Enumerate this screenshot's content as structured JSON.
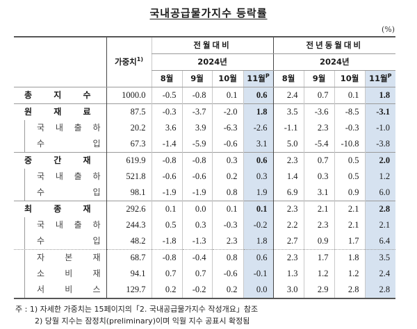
{
  "title": "국내공급물가지수 등락률",
  "unit": "(%)",
  "header": {
    "weight_label": "가중치",
    "weight_sup": "1)",
    "mom_label": "전월대비",
    "yoy_label": "전년동월대비",
    "year_label": "2024년",
    "months": [
      "8월",
      "9월",
      "10월",
      "11월"
    ],
    "prelim_sup": "P"
  },
  "rows": [
    {
      "label": [
        "총",
        "지",
        "수"
      ],
      "level": "main",
      "weight": "1000.0",
      "mom": [
        "-0.5",
        "-0.8",
        "0.1",
        "0.6"
      ],
      "yoy": [
        "2.4",
        "0.7",
        "0.1",
        "1.8"
      ]
    },
    {
      "label": [
        "원",
        "재",
        "료"
      ],
      "level": "main",
      "weight": "87.5",
      "mom": [
        "-0.3",
        "-3.7",
        "-2.0",
        "1.8"
      ],
      "yoy": [
        "3.5",
        "-3.6",
        "-8.5",
        "-3.1"
      ]
    },
    {
      "label": [
        "국",
        "내",
        "출",
        "하"
      ],
      "level": "sub",
      "weight": "20.2",
      "mom": [
        "3.6",
        "3.9",
        "-6.3",
        "-2.6"
      ],
      "yoy": [
        "-1.1",
        "2.3",
        "-0.3",
        "-1.0"
      ]
    },
    {
      "label": [
        "수",
        "입"
      ],
      "level": "sub",
      "weight": "67.3",
      "mom": [
        "-1.4",
        "-5.9",
        "-0.6",
        "3.1"
      ],
      "yoy": [
        "5.0",
        "-5.4",
        "-10.8",
        "-3.8"
      ]
    },
    {
      "label": [
        "중",
        "간",
        "재"
      ],
      "level": "main",
      "weight": "619.9",
      "mom": [
        "-0.8",
        "-0.8",
        "0.3",
        "0.6"
      ],
      "yoy": [
        "2.3",
        "0.7",
        "0.5",
        "2.0"
      ]
    },
    {
      "label": [
        "국",
        "내",
        "출",
        "하"
      ],
      "level": "sub",
      "weight": "521.8",
      "mom": [
        "-0.6",
        "-0.6",
        "0.2",
        "0.3"
      ],
      "yoy": [
        "1.4",
        "0.3",
        "0.5",
        "1.2"
      ]
    },
    {
      "label": [
        "수",
        "입"
      ],
      "level": "sub",
      "weight": "98.1",
      "mom": [
        "-1.9",
        "-1.9",
        "0.8",
        "1.9"
      ],
      "yoy": [
        "6.9",
        "3.1",
        "0.9",
        "6.0"
      ]
    },
    {
      "label": [
        "최",
        "종",
        "재"
      ],
      "level": "main",
      "weight": "292.6",
      "mom": [
        "0.1",
        "0.0",
        "0.1",
        "0.1"
      ],
      "yoy": [
        "2.3",
        "2.1",
        "2.1",
        "2.8"
      ]
    },
    {
      "label": [
        "국",
        "내",
        "출",
        "하"
      ],
      "level": "sub",
      "weight": "244.3",
      "mom": [
        "0.5",
        "0.3",
        "-0.3",
        "-0.2"
      ],
      "yoy": [
        "2.2",
        "2.3",
        "2.1",
        "2.1"
      ]
    },
    {
      "label": [
        "수",
        "입"
      ],
      "level": "sub",
      "weight": "48.2",
      "mom": [
        "-1.8",
        "-1.3",
        "2.3",
        "1.8"
      ],
      "yoy": [
        "2.7",
        "0.9",
        "1.7",
        "6.4"
      ]
    },
    {
      "label": [
        "자",
        "본",
        "재"
      ],
      "level": "sub2",
      "weight": "68.7",
      "mom": [
        "-0.8",
        "-0.4",
        "0.8",
        "0.6"
      ],
      "yoy": [
        "2.3",
        "1.7",
        "1.8",
        "3.5"
      ]
    },
    {
      "label": [
        "소",
        "비",
        "재"
      ],
      "level": "sub2",
      "weight": "94.1",
      "mom": [
        "0.7",
        "0.7",
        "-0.6",
        "-0.1"
      ],
      "yoy": [
        "1.3",
        "1.2",
        "1.2",
        "2.4"
      ]
    },
    {
      "label": [
        "서",
        "비",
        "스"
      ],
      "level": "sub2",
      "weight": "129.7",
      "mom": [
        "0.2",
        "-0.2",
        "0.2",
        "0.0"
      ],
      "yoy": [
        "3.0",
        "2.9",
        "2.8",
        "2.8"
      ]
    }
  ],
  "footnotes": {
    "prefix": "주 :",
    "note1": "1) 자세한 가중치는 15페이지의「2. 국내공급물가지수 작성개요」참조",
    "note2": "2) 당월 지수는 잠정치(preliminary)이며 익월 지수 공표시 확정됨"
  },
  "colors": {
    "shade": "#d6e2f0",
    "rule": "#555555"
  }
}
